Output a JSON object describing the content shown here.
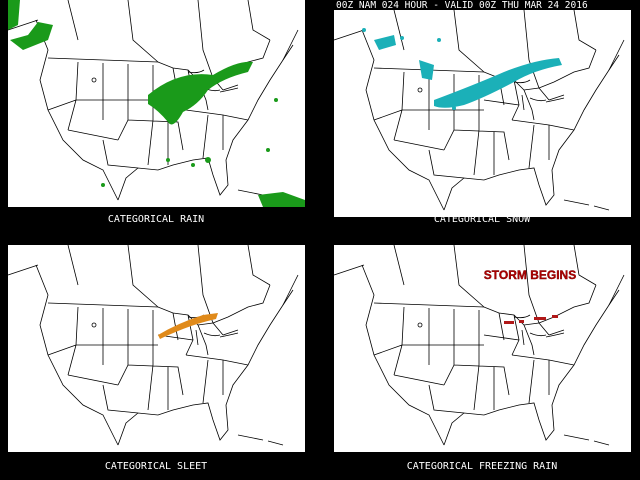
{
  "header": {
    "title": "00Z NAM 024 HOUR - VALID 00Z THU MAR 24 2016"
  },
  "panels": [
    {
      "label": "CATEGORICAL RAIN"
    },
    {
      "label": "CATEGORICAL SNOW"
    },
    {
      "label": "CATEGORICAL SLEET"
    },
    {
      "label": "CATEGORICAL FREEZING RAIN",
      "annotation": "STORM BEGINS"
    }
  ]
}
